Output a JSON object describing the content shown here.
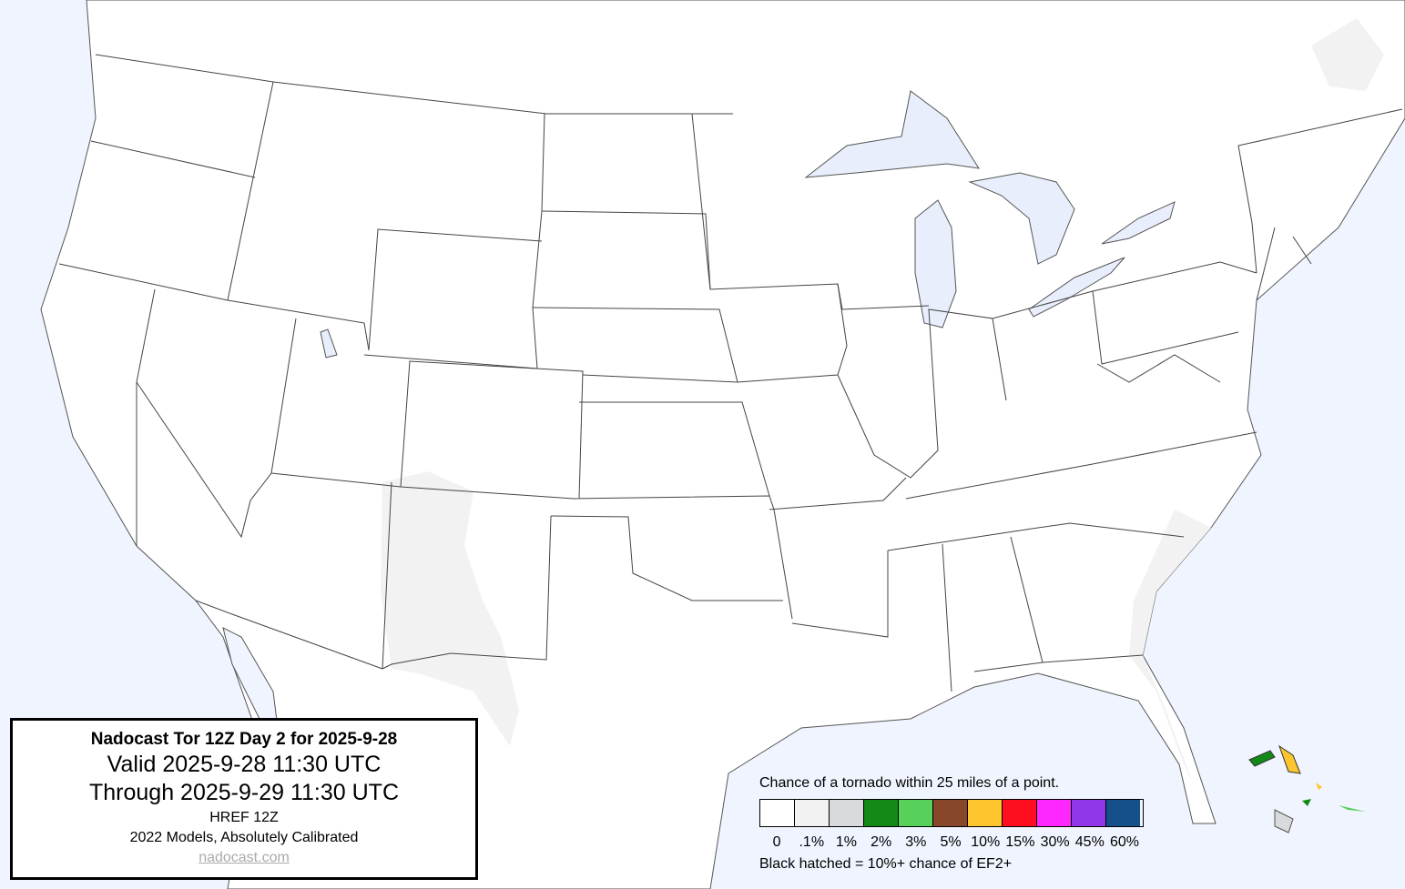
{
  "info": {
    "title": "Nadocast Tor 12Z Day 2 for 2025-9-28",
    "valid": "Valid 2025-9-28 11:30 UTC",
    "through": "Through 2025-9-29 11:30 UTC",
    "model": "HREF 12Z",
    "calibration": "2022 Models, Absolutely Calibrated",
    "link": "nadocast.com"
  },
  "legend": {
    "title": "Chance of a tornado within 25 miles of a point.",
    "bins": [
      {
        "label": "0",
        "color": "#ffffff"
      },
      {
        "label": ".1%",
        "color": "#f2f2f2"
      },
      {
        "label": "1%",
        "color": "#d9dadc"
      },
      {
        "label": "2%",
        "color": "#138a17"
      },
      {
        "label": "3%",
        "color": "#57d15a"
      },
      {
        "label": "5%",
        "color": "#88472b"
      },
      {
        "label": "10%",
        "color": "#fec52e"
      },
      {
        "label": "15%",
        "color": "#fe0e1e"
      },
      {
        "label": "30%",
        "color": "#fe27fe"
      },
      {
        "label": "45%",
        "color": "#9038e9"
      },
      {
        "label": "60%",
        "color": "#16508a"
      }
    ],
    "footnote": "Black hatched = 10%+ chance of EF2+"
  },
  "colors": {
    "water": "#f0f4fe",
    "land": "#ffffff",
    "borders": "#444444"
  }
}
